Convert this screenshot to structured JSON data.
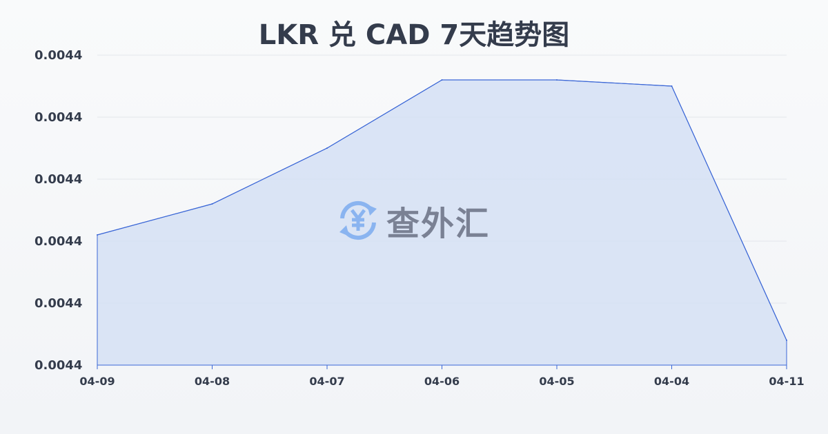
{
  "chart_data": {
    "type": "area",
    "title": "LKR 兑 CAD 7天趋势图",
    "categories": [
      "04-09",
      "04-08",
      "04-07",
      "04-06",
      "04-05",
      "04-04",
      "04-11"
    ],
    "values": [
      0.004421,
      0.004426,
      0.004435,
      0.004446,
      0.004446,
      0.004445,
      0.004404
    ],
    "ylim": [
      0.0044,
      0.00445
    ],
    "yticks": [
      "0.0044",
      "0.0044",
      "0.0044",
      "0.0044",
      "0.0044",
      "0.0044"
    ],
    "grid": true,
    "colors": {
      "line": "#3a66d6",
      "fill": "#d5e0f5"
    }
  },
  "watermark": {
    "text": "查外汇",
    "icon": "yen-exchange-icon",
    "icon_color": "#8ab4f0"
  }
}
